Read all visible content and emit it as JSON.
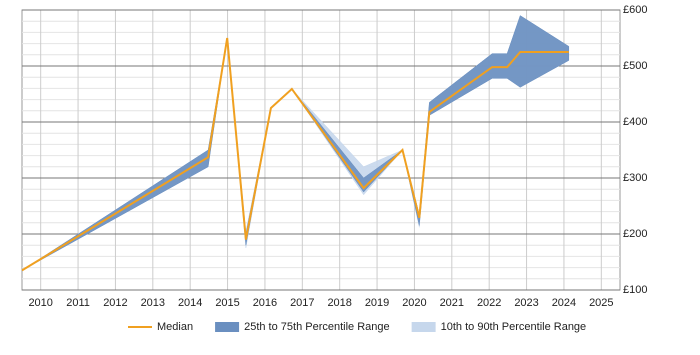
{
  "chart_data": {
    "type": "line",
    "x": [
      2009.5,
      2014.48,
      2014.99,
      2015.49,
      2016.16,
      2016.72,
      2018.64,
      2019.68,
      2020.13,
      2020.4,
      2022.08,
      2022.48,
      2022.83,
      2024.13
    ],
    "series": [
      {
        "name": "10th to 90th Percentile Range",
        "color": "#c6d7ec",
        "kind": "band",
        "low": [
          135,
          320,
          550,
          175,
          425,
          459,
          270,
          350,
          212,
          412,
          478,
          478,
          462,
          510
        ],
        "high": [
          135,
          350,
          550,
          205,
          425,
          459,
          320,
          350,
          235,
          435,
          522,
          522,
          590,
          535
        ]
      },
      {
        "name": "25th to 75th Percentile Range",
        "color": "#6a8fc0",
        "kind": "band",
        "low": [
          135,
          320,
          550,
          180,
          425,
          459,
          275,
          350,
          215,
          412,
          478,
          478,
          462,
          510
        ],
        "high": [
          135,
          350,
          550,
          200,
          425,
          459,
          300,
          350,
          235,
          435,
          522,
          522,
          590,
          535
        ]
      },
      {
        "name": "Median",
        "color": "#f0a020",
        "kind": "line",
        "values": [
          135,
          337,
          550,
          190,
          425,
          459,
          282,
          350,
          229,
          418,
          498,
          498,
          525,
          525
        ]
      }
    ],
    "xlim": [
      2009.5,
      2025.5
    ],
    "xticks": [
      2010,
      2011,
      2012,
      2013,
      2014,
      2015,
      2016,
      2017,
      2018,
      2019,
      2020,
      2021,
      2022,
      2023,
      2024,
      2025
    ],
    "ylim": [
      100,
      600
    ],
    "yticks": [
      {
        "value": 100,
        "label": "£100"
      },
      {
        "value": 200,
        "label": "£200"
      },
      {
        "value": 300,
        "label": "£300"
      },
      {
        "value": 400,
        "label": "£400"
      },
      {
        "value": 500,
        "label": "£500"
      },
      {
        "value": 600,
        "label": "£600"
      }
    ],
    "grid": true,
    "legend": "bottom"
  }
}
